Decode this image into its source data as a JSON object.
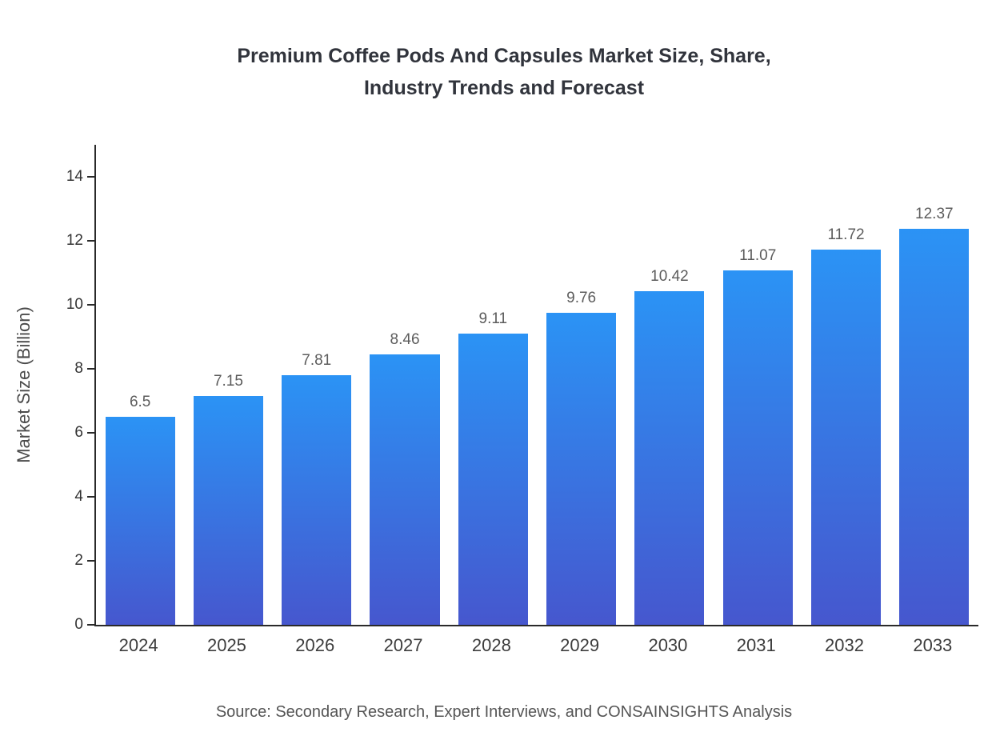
{
  "title": {
    "line1": "Premium Coffee Pods And Capsules Market Size, Share,",
    "line2": "Industry Trends and Forecast"
  },
  "source": "Source: Secondary Research, Expert Interviews, and CONSAINSIGHTS Analysis",
  "chart_data": {
    "type": "bar",
    "title": "Premium Coffee Pods And Capsules Market Size, Share, Industry Trends and Forecast",
    "categories": [
      "2024",
      "2025",
      "2026",
      "2027",
      "2028",
      "2029",
      "2030",
      "2031",
      "2032",
      "2033"
    ],
    "values": [
      6.5,
      7.15,
      7.81,
      8.46,
      9.11,
      9.76,
      10.42,
      11.07,
      11.72,
      12.37
    ],
    "value_labels": [
      "6.5",
      "7.15",
      "7.81",
      "8.46",
      "9.11",
      "9.76",
      "10.42",
      "11.07",
      "11.72",
      "12.37"
    ],
    "xlabel": "",
    "ylabel": "Market Size (Billion)",
    "ylim": [
      0,
      15
    ],
    "yticks": [
      0,
      2,
      4,
      6,
      8,
      10,
      12,
      14
    ],
    "grid": false,
    "legend": "none",
    "colors": {
      "bar_gradient_top": "#2B93F5",
      "bar_gradient_bottom": "#4657CE",
      "axis": "#2a2a2a",
      "value_label": "#5c5c5c"
    }
  }
}
